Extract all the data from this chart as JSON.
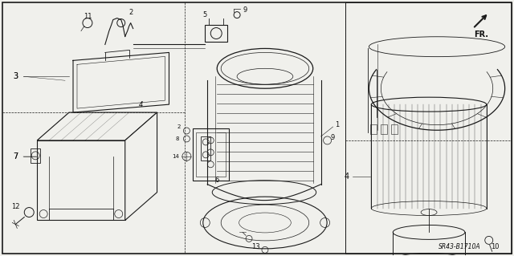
{
  "diagram_code": "SR43-B1710A",
  "background_color": "#f0f0ec",
  "line_color": "#1a1a1a",
  "text_color": "#111111",
  "fig_width": 6.4,
  "fig_height": 3.19,
  "dpi": 100,
  "border_lw": 1.0,
  "main_lw": 0.8,
  "thin_lw": 0.45
}
